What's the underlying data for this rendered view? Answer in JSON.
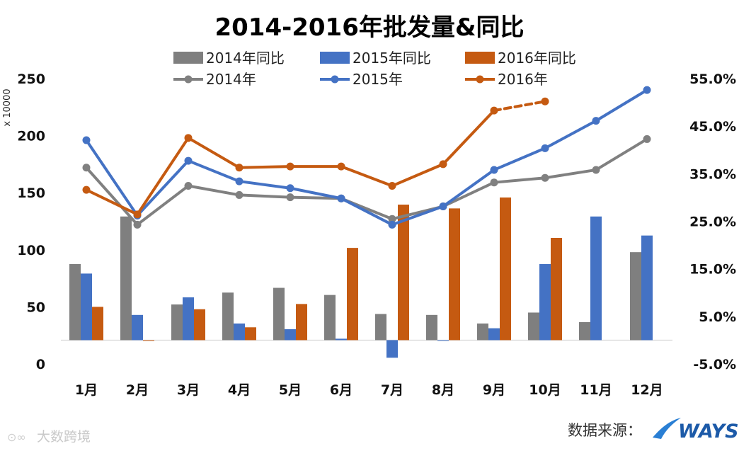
{
  "chart_data": {
    "type": "bar+line",
    "title": "2014-2016年批发量&同比",
    "categories": [
      "1月",
      "2月",
      "3月",
      "4月",
      "5月",
      "6月",
      "7月",
      "8月",
      "9月",
      "10月",
      "11月",
      "12月"
    ],
    "left_axis": {
      "unit_label": "x 10000",
      "min": 0,
      "max": 250,
      "ticks": [
        0,
        50,
        100,
        150,
        200,
        250
      ]
    },
    "right_axis": {
      "min": -5,
      "max": 55,
      "ticks": [
        "-5.0%",
        "5.0%",
        "15.0%",
        "25.0%",
        "35.0%",
        "45.0%",
        "55.0%"
      ],
      "tick_values": [
        -5,
        5,
        15,
        25,
        35,
        45,
        55
      ]
    },
    "bar_series": [
      {
        "name": "2014年同比",
        "color": "#7f7f7f",
        "axis": "right",
        "values": [
          16,
          26,
          7.5,
          10,
          11,
          9.5,
          5.5,
          5.3,
          3.5,
          5.8,
          3.8,
          18.5
        ]
      },
      {
        "name": "2015年同比",
        "color": "#4472c4",
        "axis": "right",
        "values": [
          14,
          5.3,
          9,
          3.5,
          2.3,
          0.3,
          -3.7,
          -0.1,
          2.5,
          16,
          26,
          22
        ]
      },
      {
        "name": "2016年同比",
        "color": "#c55a11",
        "axis": "right",
        "values": [
          7,
          -0.1,
          6.5,
          2.7,
          7.6,
          19.4,
          28.5,
          27.7,
          30,
          21.5,
          null,
          null
        ]
      }
    ],
    "line_series": [
      {
        "name": "2014年",
        "color": "#808080",
        "axis": "left",
        "values": [
          172,
          122,
          156,
          148,
          146,
          145,
          127,
          138,
          159,
          163,
          170,
          197
        ]
      },
      {
        "name": "2015年",
        "color": "#4472c4",
        "axis": "left",
        "values": [
          196,
          130,
          178,
          160,
          154,
          145,
          122,
          138,
          170,
          189,
          213,
          240
        ]
      },
      {
        "name": "2016年",
        "color": "#c55a11",
        "axis": "left",
        "dashed_last_segment": true,
        "values": [
          152.5,
          131,
          198,
          172,
          173,
          173,
          156,
          175,
          222,
          230,
          null,
          null
        ]
      }
    ]
  },
  "source": {
    "label": "数据来源：",
    "logo_text": "WAYS"
  },
  "watermark": {
    "text": "大数跨境"
  }
}
